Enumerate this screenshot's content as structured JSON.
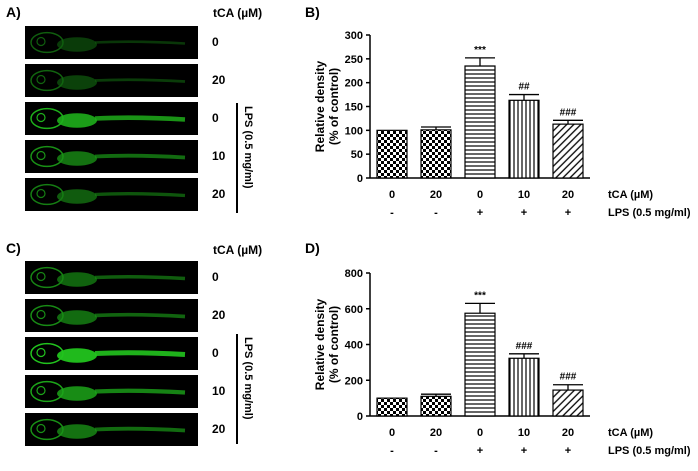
{
  "panels": {
    "A": "A)",
    "B": "B)",
    "C": "C)",
    "D": "D)"
  },
  "images": {
    "tca_header": "tCA (µM)",
    "lps_label": "LPS (0.5 mg/ml)",
    "rows": [
      "0",
      "20",
      "0",
      "10",
      "20"
    ]
  },
  "colors": {
    "fluorescence": "#22c41e",
    "background": "#000000",
    "bar_stroke": "#000000"
  },
  "chart_data": [
    {
      "type": "bar",
      "panel": "B",
      "ylabel": "Relative density",
      "ylabel2": "(% of control)",
      "ylim": [
        0,
        300
      ],
      "yticks": [
        "0",
        "50",
        "100",
        "150",
        "200",
        "250",
        "300"
      ],
      "categories": [
        "0",
        "20",
        "0",
        "10",
        "20"
      ],
      "lps": [
        "-",
        "-",
        "+",
        "+",
        "+"
      ],
      "row_label_tca": "tCA (µM)",
      "row_label_lps": "LPS (0.5 mg/ml)",
      "values": [
        100,
        101,
        235,
        163,
        113
      ],
      "errors": [
        0,
        6,
        17,
        12,
        8
      ],
      "annotations": [
        "",
        "",
        "***",
        "##",
        "###"
      ],
      "patterns": [
        "checker",
        "checker",
        "hlines",
        "vlines",
        "diag"
      ]
    },
    {
      "type": "bar",
      "panel": "D",
      "ylabel": "Relative density",
      "ylabel2": "(% of control)",
      "ylim": [
        0,
        800
      ],
      "yticks": [
        "0",
        "200",
        "400",
        "600",
        "800"
      ],
      "categories": [
        "0",
        "20",
        "0",
        "10",
        "20"
      ],
      "lps": [
        "-",
        "-",
        "+",
        "+",
        "+"
      ],
      "row_label_tca": "tCA (µM)",
      "row_label_lps": "LPS (0.5 mg/ml)",
      "values": [
        100,
        110,
        575,
        323,
        145
      ],
      "errors": [
        0,
        12,
        55,
        25,
        30
      ],
      "annotations": [
        "",
        "",
        "***",
        "###",
        "###"
      ],
      "patterns": [
        "checker",
        "checker",
        "hlines",
        "vlines",
        "diag"
      ]
    }
  ]
}
